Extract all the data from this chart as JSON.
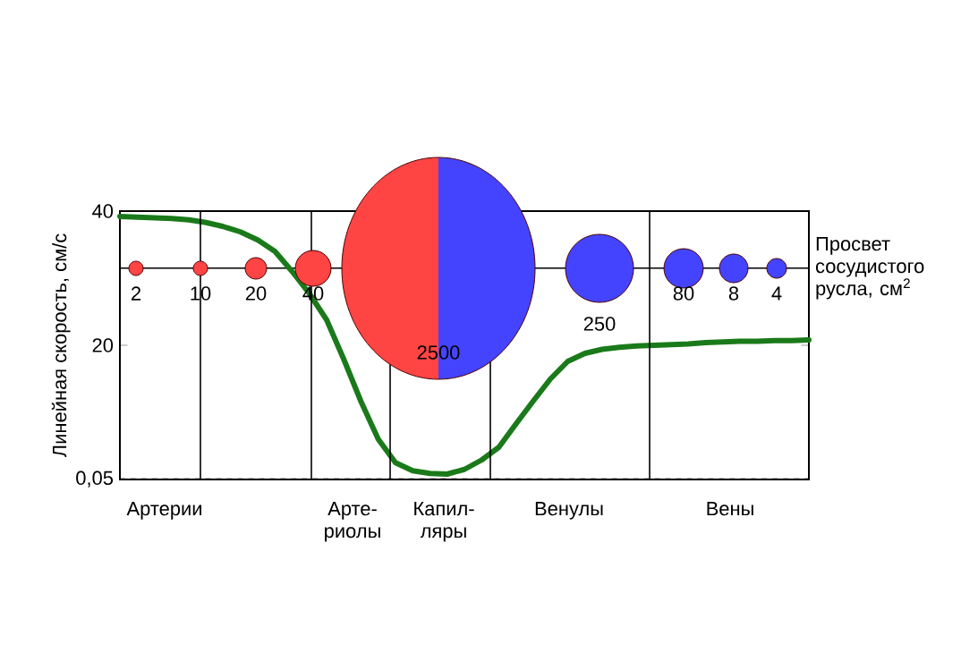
{
  "chart_data": {
    "type": "line",
    "ylabel": "Линейная скорость, см/с",
    "categories": [
      null,
      null,
      null,
      null,
      null,
      null,
      null,
      null,
      null,
      null,
      null,
      null,
      null,
      null,
      null,
      null,
      null,
      null,
      null,
      null,
      null,
      null,
      null,
      null,
      null,
      null,
      null,
      null,
      null,
      null,
      null,
      null,
      null,
      null,
      null,
      null,
      null,
      null,
      null,
      null,
      null
    ],
    "ylim": [
      0,
      40
    ],
    "tick_labels": "y",
    "yticks": [
      {
        "value": 0.05,
        "label": "0,05"
      },
      {
        "value": 20,
        "label": "20"
      },
      {
        "value": 40,
        "label": "40"
      }
    ],
    "series": [
      {
        "color": "#1a7a1a",
        "values": [
          39.2,
          39.1,
          39.0,
          38.9,
          38.7,
          38.3,
          37.7,
          36.9,
          35.7,
          34.0,
          31.0,
          27.7,
          23.8,
          17.9,
          11.6,
          6.0,
          2.5,
          1.3,
          0.9,
          0.8,
          1.5,
          2.9,
          4.8,
          8.3,
          11.7,
          15.0,
          17.6,
          18.8,
          19.4,
          19.7,
          19.9,
          20.0,
          20.1,
          20.2,
          20.4,
          20.5,
          20.6,
          20.6,
          20.7,
          20.7,
          20.8
        ]
      }
    ],
    "ref_lines": [
      {
        "axis": "y",
        "value": 31.5,
        "label": "Просвет сосудистого русла, см$^{2}$"
      },
      {
        "axis": "y",
        "value": 0.05,
        "line_style": "dashed"
      }
    ],
    "annotations": [
      "2",
      "10",
      "20",
      "40",
      "2500",
      "250",
      "80",
      "8",
      "4",
      "Артерии",
      "Арте- риолы",
      "Капил- ляры",
      "Венулы",
      "Вены"
    ]
  }
}
